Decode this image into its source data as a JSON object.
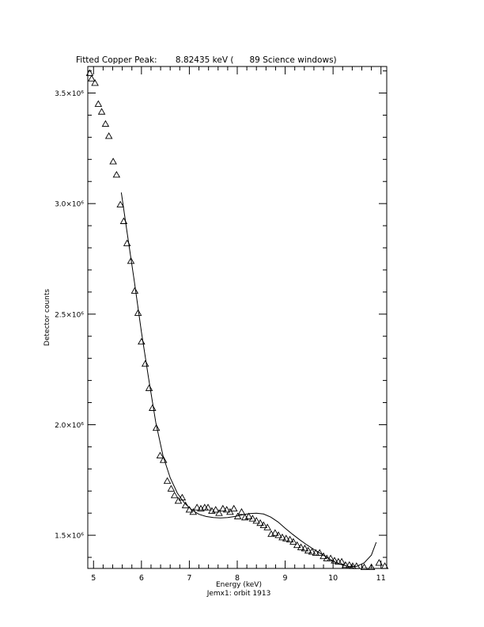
{
  "chart_data": {
    "type": "scatter",
    "title": "Fitted Copper Peak:       8.82435 keV (      89 Science windows)",
    "xlabel": "Energy (keV)",
    "ylabel": "Detector counts",
    "subtitle": "Jemx1: orbit 1913",
    "xlim": [
      4.88,
      11.12
    ],
    "ylim": [
      1350000,
      3620000
    ],
    "x_ticks": [
      {
        "value": 5,
        "label": "5"
      },
      {
        "value": 6,
        "label": "6"
      },
      {
        "value": 7,
        "label": "7"
      },
      {
        "value": 8,
        "label": "8"
      },
      {
        "value": 9,
        "label": "9"
      },
      {
        "value": 10,
        "label": "10"
      },
      {
        "value": 11,
        "label": "11"
      }
    ],
    "y_ticks": [
      {
        "value": 1500000,
        "label": "1.5×10⁶"
      },
      {
        "value": 2000000,
        "label": "2.0×10⁶"
      },
      {
        "value": 2500000,
        "label": "2.5×10⁶"
      },
      {
        "value": 3000000,
        "label": "3.0×10⁶"
      },
      {
        "value": 3500000,
        "label": "3.5×10⁶"
      }
    ],
    "series": [
      {
        "marker": "triangle",
        "x": [
          4.92,
          4.96,
          5.03,
          5.1,
          5.17,
          5.25,
          5.32,
          5.41,
          5.48,
          5.56,
          5.63,
          5.7,
          5.78,
          5.86,
          5.93,
          6.0,
          6.08,
          6.16,
          6.23,
          6.31,
          6.39,
          6.46,
          6.54,
          6.62,
          6.69,
          6.77,
          6.85,
          6.92,
          7.0,
          7.08,
          7.16,
          7.24,
          7.32,
          7.39,
          7.47,
          7.55,
          7.62,
          7.7,
          7.78,
          7.85,
          7.93,
          8.01,
          8.09,
          8.16,
          8.24,
          8.32,
          8.4,
          8.48,
          8.55,
          8.63,
          8.71,
          8.79,
          8.86,
          8.94,
          9.02,
          9.1,
          9.17,
          9.25,
          9.33,
          9.41,
          9.48,
          9.56,
          9.64,
          9.72,
          9.8,
          9.87,
          9.95,
          10.03,
          10.11,
          10.18,
          10.26,
          10.34,
          10.41,
          10.49,
          10.65,
          10.8,
          10.96,
          11.08
        ],
        "y": [
          3590000,
          3565000,
          3545000,
          3450000,
          3415000,
          3360000,
          3305000,
          3190000,
          3130000,
          2995000,
          2920000,
          2820000,
          2740000,
          2605000,
          2505000,
          2375000,
          2275000,
          2165000,
          2075000,
          1985000,
          1860000,
          1840000,
          1745000,
          1710000,
          1680000,
          1655000,
          1670000,
          1635000,
          1615000,
          1605000,
          1625000,
          1620000,
          1625000,
          1625000,
          1610000,
          1615000,
          1600000,
          1620000,
          1615000,
          1605000,
          1620000,
          1585000,
          1605000,
          1580000,
          1585000,
          1575000,
          1565000,
          1555000,
          1545000,
          1535000,
          1505000,
          1510000,
          1500000,
          1490000,
          1485000,
          1480000,
          1470000,
          1455000,
          1445000,
          1440000,
          1430000,
          1425000,
          1420000,
          1420000,
          1405000,
          1395000,
          1395000,
          1385000,
          1380000,
          1380000,
          1365000,
          1365000,
          1360000,
          1360000,
          1355000,
          1355000,
          1375000,
          1360000
        ]
      },
      {
        "marker": "line",
        "x": [
          5.58,
          5.7,
          5.85,
          6.0,
          6.15,
          6.3,
          6.45,
          6.6,
          6.75,
          6.9,
          7.05,
          7.2,
          7.35,
          7.5,
          7.65,
          7.8,
          7.95,
          8.1,
          8.25,
          8.4,
          8.55,
          8.7,
          8.85,
          9.0,
          9.15,
          9.3,
          9.45,
          9.6,
          9.75,
          9.9,
          10.05,
          10.2,
          10.35,
          10.5,
          10.65,
          10.8,
          10.9
        ],
        "y": [
          3050000,
          2870000,
          2650000,
          2420000,
          2210000,
          2010000,
          1860000,
          1760000,
          1690000,
          1645000,
          1615000,
          1595000,
          1585000,
          1580000,
          1578000,
          1580000,
          1585000,
          1592000,
          1598000,
          1600000,
          1596000,
          1582000,
          1560000,
          1532000,
          1505000,
          1480000,
          1457000,
          1436000,
          1416000,
          1396000,
          1378000,
          1365000,
          1358000,
          1360000,
          1375000,
          1410000,
          1468000
        ]
      }
    ]
  }
}
